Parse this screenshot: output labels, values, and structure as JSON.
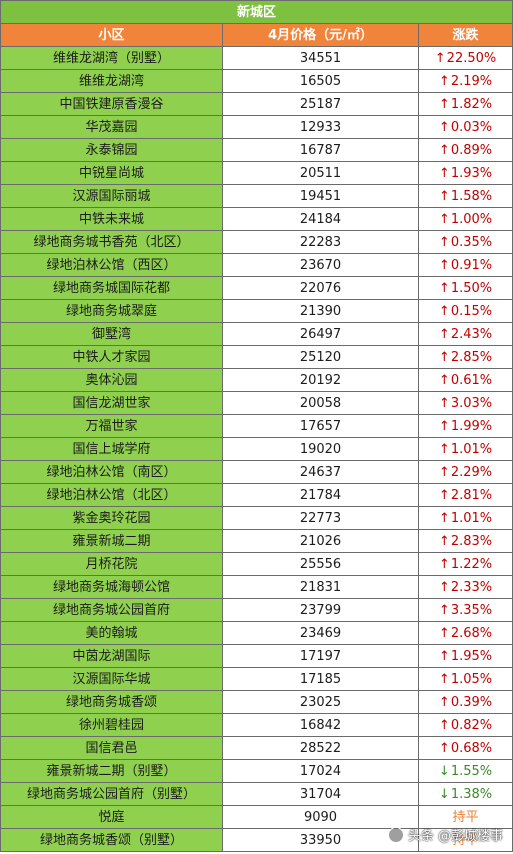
{
  "table": {
    "title": "新城区",
    "headers": {
      "name": "小区",
      "price": "4月价格（元/㎡）",
      "change": "涨跌"
    },
    "arrows": {
      "up": "↑",
      "down": "↓"
    },
    "rows": [
      {
        "name": "维维龙湖湾（别墅）",
        "price": "34551",
        "change": "22.50%",
        "trend": "up"
      },
      {
        "name": "维维龙湖湾",
        "price": "16505",
        "change": "2.19%",
        "trend": "up"
      },
      {
        "name": "中国铁建原香漫谷",
        "price": "25187",
        "change": "1.82%",
        "trend": "up"
      },
      {
        "name": "华茂嘉园",
        "price": "12933",
        "change": "0.03%",
        "trend": "up"
      },
      {
        "name": "永泰锦园",
        "price": "16787",
        "change": "0.89%",
        "trend": "up"
      },
      {
        "name": "中锐星尚城",
        "price": "20511",
        "change": "1.93%",
        "trend": "up"
      },
      {
        "name": "汉源国际丽城",
        "price": "19451",
        "change": "1.58%",
        "trend": "up"
      },
      {
        "name": "中铁未来城",
        "price": "24184",
        "change": "1.00%",
        "trend": "up"
      },
      {
        "name": "绿地商务城书香苑（北区）",
        "price": "22283",
        "change": "0.35%",
        "trend": "up"
      },
      {
        "name": "绿地泊林公馆（西区）",
        "price": "23670",
        "change": "0.91%",
        "trend": "up"
      },
      {
        "name": "绿地商务城国际花都",
        "price": "22076",
        "change": "1.50%",
        "trend": "up"
      },
      {
        "name": "绿地商务城翠庭",
        "price": "21390",
        "change": "0.15%",
        "trend": "up"
      },
      {
        "name": "御墅湾",
        "price": "26497",
        "change": "2.43%",
        "trend": "up"
      },
      {
        "name": "中铁人才家园",
        "price": "25120",
        "change": "2.85%",
        "trend": "up"
      },
      {
        "name": "奥体沁园",
        "price": "20192",
        "change": "0.61%",
        "trend": "up"
      },
      {
        "name": "国信龙湖世家",
        "price": "20058",
        "change": "3.03%",
        "trend": "up"
      },
      {
        "name": "万福世家",
        "price": "17657",
        "change": "1.99%",
        "trend": "up"
      },
      {
        "name": "国信上城学府",
        "price": "19020",
        "change": "1.01%",
        "trend": "up"
      },
      {
        "name": "绿地泊林公馆（南区）",
        "price": "24637",
        "change": "2.29%",
        "trend": "up"
      },
      {
        "name": "绿地泊林公馆（北区）",
        "price": "21784",
        "change": "2.81%",
        "trend": "up"
      },
      {
        "name": "紫金奥玲花园",
        "price": "22773",
        "change": "1.01%",
        "trend": "up"
      },
      {
        "name": "雍景新城二期",
        "price": "21026",
        "change": "2.83%",
        "trend": "up"
      },
      {
        "name": "月桥花院",
        "price": "25556",
        "change": "1.22%",
        "trend": "up"
      },
      {
        "name": "绿地商务城海顿公馆",
        "price": "21831",
        "change": "2.33%",
        "trend": "up"
      },
      {
        "name": "绿地商务城公园首府",
        "price": "23799",
        "change": "3.35%",
        "trend": "up"
      },
      {
        "name": "美的翰城",
        "price": "23469",
        "change": "2.68%",
        "trend": "up"
      },
      {
        "name": "中茵龙湖国际",
        "price": "17197",
        "change": "1.95%",
        "trend": "up"
      },
      {
        "name": "汉源国际华城",
        "price": "17185",
        "change": "1.05%",
        "trend": "up"
      },
      {
        "name": "绿地商务城香颂",
        "price": "23025",
        "change": "0.39%",
        "trend": "up"
      },
      {
        "name": "徐州碧桂园",
        "price": "16842",
        "change": "0.82%",
        "trend": "up"
      },
      {
        "name": "国信君邑",
        "price": "28522",
        "change": "0.68%",
        "trend": "up"
      },
      {
        "name": "雍景新城二期（别墅）",
        "price": "17024",
        "change": "1.55%",
        "trend": "down"
      },
      {
        "name": "绿地商务城公园首府（别墅）",
        "price": "31704",
        "change": "1.38%",
        "trend": "down"
      },
      {
        "name": "悦庭",
        "price": "9090",
        "change": "持平",
        "trend": "flat"
      },
      {
        "name": "绿地商务城香颂（别墅）",
        "price": "33950",
        "change": "持平",
        "trend": "flat"
      }
    ]
  },
  "watermark": {
    "text": "头条 @彭城楼事"
  },
  "colors": {
    "title_bg": "#7ec140",
    "header_bg": "#f0843a",
    "name_bg": "#8fd14f",
    "up": "#c00000",
    "down": "#3a8a2a",
    "flat": "#ed7d31"
  }
}
